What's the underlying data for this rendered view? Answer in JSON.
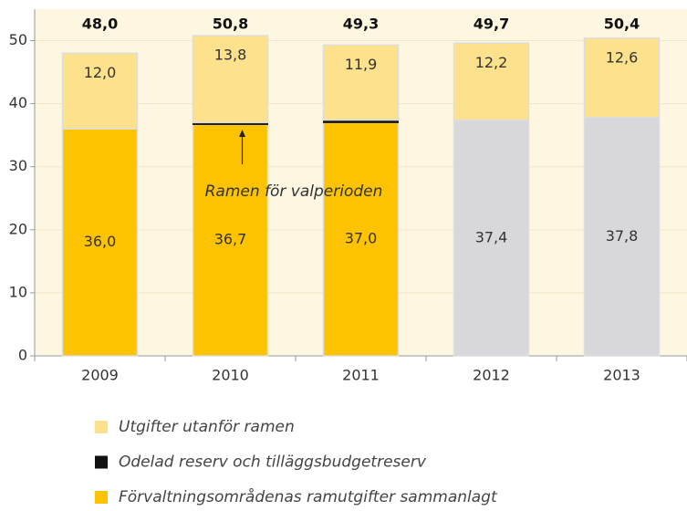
{
  "chart_data": {
    "type": "stacked_bar",
    "categories": [
      "2009",
      "2010",
      "2011",
      "2012",
      "2013"
    ],
    "series": [
      {
        "name": "Utgifter utanför ramen",
        "color": "#fee18c",
        "values": [
          12.0,
          13.8,
          11.9,
          12.2,
          12.6
        ],
        "value_labels": [
          "12,0",
          "13,8",
          "11,9",
          "12,2",
          "12,6"
        ]
      },
      {
        "name": "Odelad reserv och tilläggsbudgetreserv",
        "color": "#111111",
        "values": [
          null,
          0.3,
          0.4,
          null,
          null
        ]
      },
      {
        "name": "Förvaltningsområdenas ramutgifter sammanlagt",
        "color": "#fdc300",
        "colors": [
          "#fdc300",
          "#fdc300",
          "#fdc300",
          "#d8d8dc",
          "#d8d8dc"
        ],
        "values": [
          36.0,
          36.7,
          37.0,
          37.4,
          37.8
        ],
        "value_labels": [
          "36,0",
          "36,7",
          "37,0",
          "37,4",
          "37,8"
        ]
      }
    ],
    "totals": [
      48.0,
      50.8,
      49.3,
      49.7,
      50.4
    ],
    "total_labels": [
      "48,0",
      "50,8",
      "49,3",
      "49,7",
      "50,4"
    ],
    "annotation": "Ramen för valperioden",
    "ylim": [
      0,
      55
    ],
    "yticks": [
      0,
      10,
      20,
      30,
      40,
      50
    ],
    "grid": true
  }
}
